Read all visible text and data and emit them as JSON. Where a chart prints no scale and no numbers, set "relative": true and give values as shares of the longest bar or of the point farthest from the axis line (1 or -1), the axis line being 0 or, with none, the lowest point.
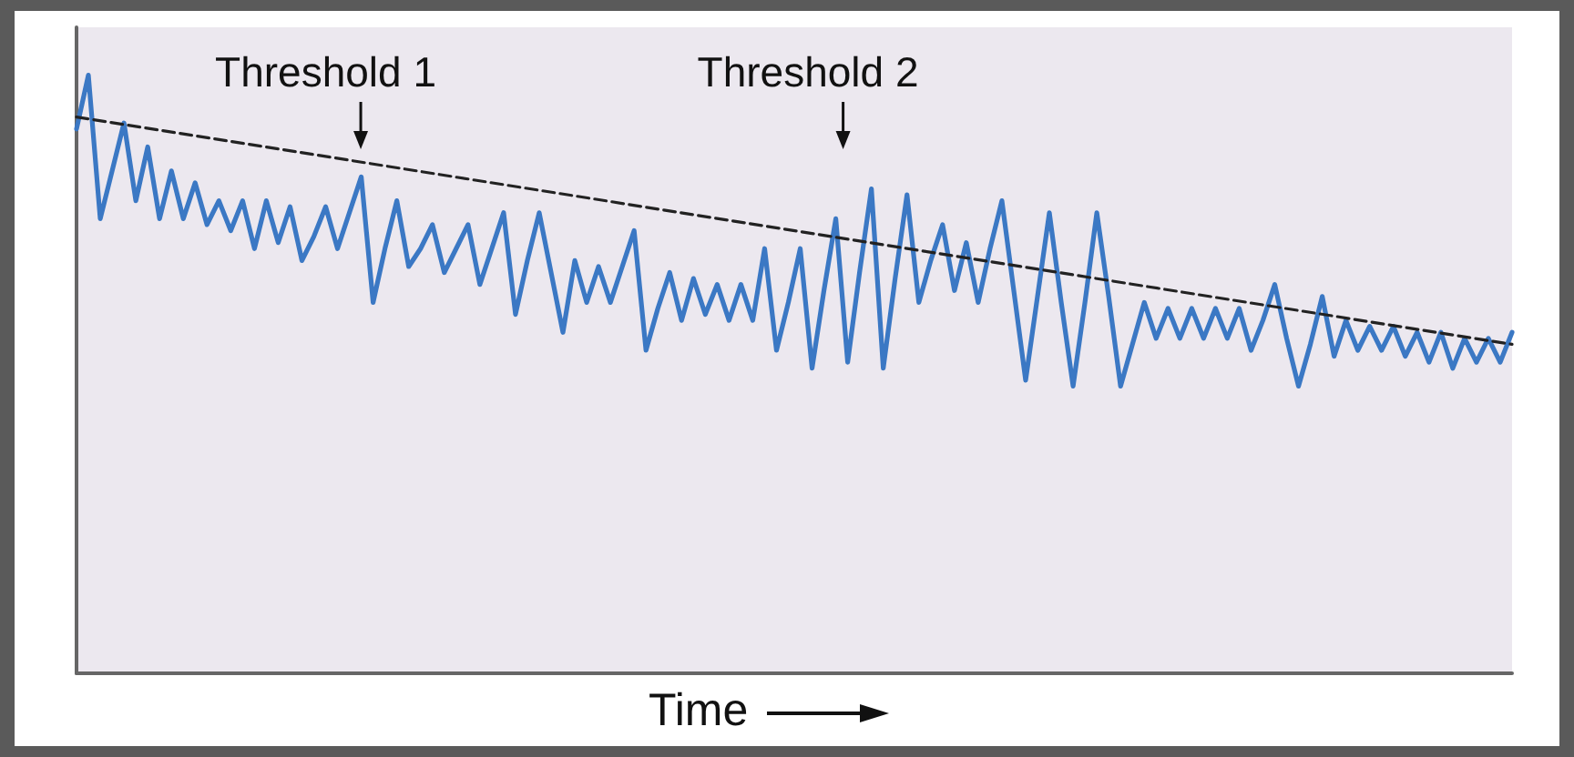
{
  "chart_data": {
    "type": "line",
    "relative": true,
    "xlabel": "Time",
    "annotations": [
      "Threshold 1",
      "Threshold 2"
    ],
    "categories": [
      null,
      null,
      null,
      null,
      null,
      null,
      null,
      null,
      null,
      null,
      null,
      null,
      null,
      null,
      null,
      null,
      null,
      null,
      null,
      null,
      null,
      null,
      null,
      null,
      null,
      null,
      null,
      null,
      null,
      null,
      null,
      null,
      null,
      null,
      null,
      null,
      null,
      null,
      null,
      null,
      null,
      null,
      null,
      null,
      null,
      null,
      null,
      null,
      null,
      null,
      null,
      null,
      null,
      null,
      null,
      null,
      null,
      null,
      null,
      null,
      null,
      null,
      null,
      null,
      null,
      null,
      null,
      null,
      null,
      null,
      null,
      null,
      null,
      null,
      null,
      null,
      null,
      null,
      null,
      null,
      null,
      null,
      null,
      null,
      null,
      null,
      null,
      null,
      null,
      null,
      null,
      null,
      null,
      null,
      null,
      null,
      null,
      null,
      null,
      null,
      null,
      null,
      null,
      null,
      null,
      null,
      null,
      null,
      null,
      null,
      null,
      null,
      null,
      null,
      null,
      null,
      null,
      null,
      null,
      null,
      null,
      null
    ],
    "series": [
      {
        "color": "#3b78c4",
        "line_style": "solid",
        "values": [
          0.91,
          1.0,
          0.76,
          0.84,
          0.92,
          0.79,
          0.88,
          0.76,
          0.84,
          0.76,
          0.82,
          0.75,
          0.79,
          0.74,
          0.79,
          0.71,
          0.79,
          0.72,
          0.78,
          0.69,
          0.73,
          0.78,
          0.71,
          0.77,
          0.83,
          0.62,
          0.71,
          0.79,
          0.68,
          0.71,
          0.75,
          0.67,
          0.71,
          0.75,
          0.65,
          0.71,
          0.77,
          0.6,
          0.69,
          0.77,
          0.67,
          0.57,
          0.69,
          0.62,
          0.68,
          0.62,
          0.68,
          0.74,
          0.54,
          0.61,
          0.67,
          0.59,
          0.66,
          0.6,
          0.65,
          0.59,
          0.65,
          0.59,
          0.71,
          0.54,
          0.62,
          0.71,
          0.51,
          0.64,
          0.76,
          0.52,
          0.67,
          0.81,
          0.51,
          0.66,
          0.8,
          0.62,
          0.69,
          0.75,
          0.64,
          0.72,
          0.62,
          0.71,
          0.79,
          0.64,
          0.49,
          0.63,
          0.77,
          0.62,
          0.48,
          0.62,
          0.77,
          0.63,
          0.48,
          0.55,
          0.62,
          0.56,
          0.61,
          0.56,
          0.61,
          0.56,
          0.61,
          0.56,
          0.61,
          0.54,
          0.59,
          0.65,
          0.56,
          0.48,
          0.55,
          0.63,
          0.53,
          0.59,
          0.54,
          0.58,
          0.54,
          0.58,
          0.53,
          0.57,
          0.52,
          0.57,
          0.51,
          0.56,
          0.52,
          0.56,
          0.52,
          0.57
        ]
      },
      {
        "color": "#222222",
        "line_style": "dashed",
        "values": [
          0.93,
          null,
          null,
          null,
          null,
          null,
          null,
          null,
          null,
          null,
          null,
          null,
          null,
          null,
          null,
          null,
          null,
          null,
          null,
          null,
          null,
          null,
          null,
          null,
          null,
          null,
          null,
          null,
          null,
          null,
          null,
          null,
          null,
          null,
          null,
          null,
          null,
          null,
          null,
          null,
          null,
          null,
          null,
          null,
          null,
          null,
          null,
          null,
          null,
          null,
          null,
          null,
          null,
          null,
          null,
          null,
          null,
          null,
          null,
          null,
          null,
          null,
          null,
          null,
          null,
          null,
          null,
          null,
          null,
          null,
          null,
          null,
          null,
          null,
          null,
          null,
          null,
          null,
          null,
          null,
          null,
          null,
          null,
          null,
          null,
          null,
          null,
          null,
          null,
          null,
          null,
          null,
          null,
          null,
          null,
          null,
          null,
          null,
          null,
          null,
          null,
          null,
          null,
          null,
          null,
          null,
          null,
          null,
          null,
          null,
          null,
          null,
          null,
          null,
          null,
          null,
          null,
          null,
          null,
          null,
          null,
          0.55
        ]
      }
    ]
  }
}
